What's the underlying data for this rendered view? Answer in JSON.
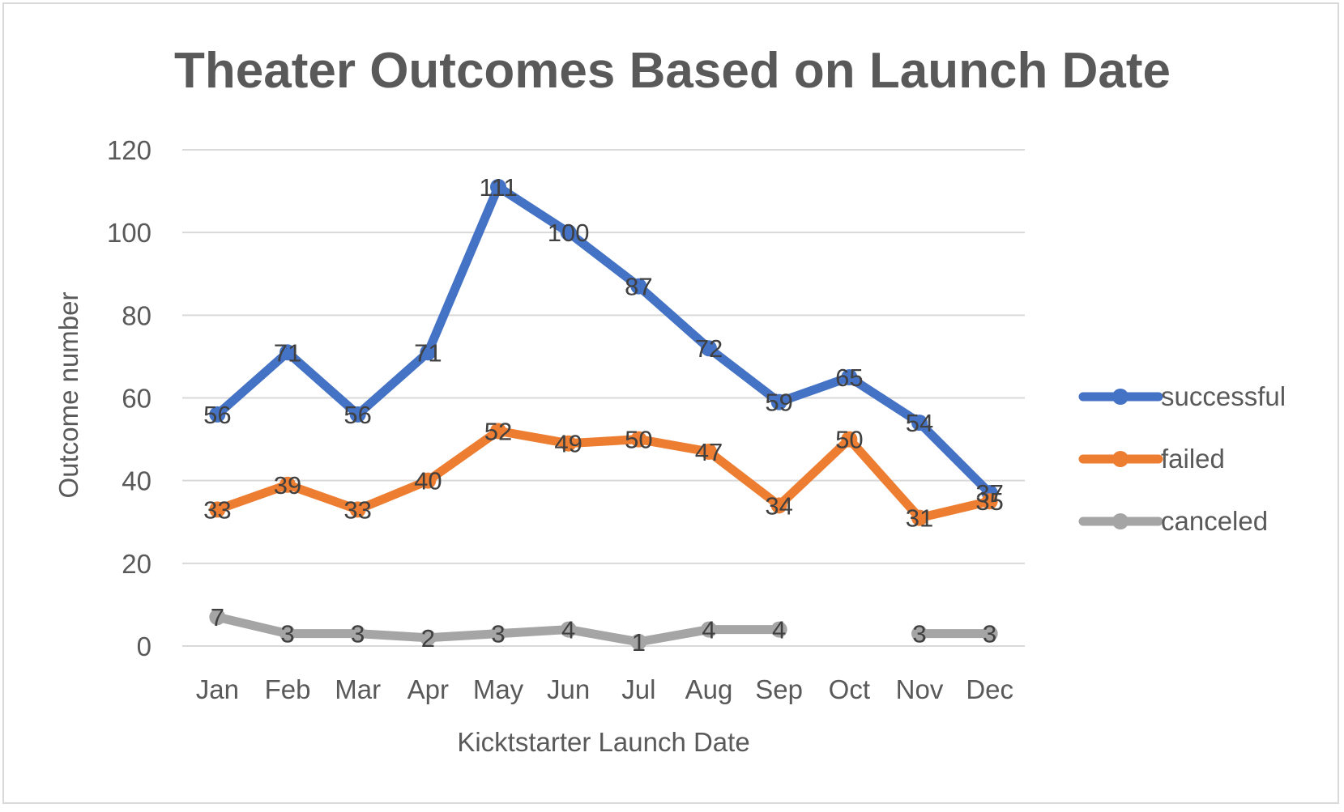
{
  "chart_data": {
    "type": "line",
    "title": "Theater Outcomes Based on Launch Date",
    "xlabel": "Kicktstarter Launch Date",
    "ylabel": "Outcome number",
    "ylim": [
      0,
      120
    ],
    "yticks": [
      0,
      20,
      40,
      60,
      80,
      100,
      120
    ],
    "categories": [
      "Jan",
      "Feb",
      "Mar",
      "Apr",
      "May",
      "Jun",
      "Jul",
      "Aug",
      "Sep",
      "Oct",
      "Nov",
      "Dec"
    ],
    "grid": true,
    "legend_position": "right",
    "series": [
      {
        "name": "successful",
        "color": "#4472c4",
        "values": [
          56,
          71,
          56,
          71,
          111,
          100,
          87,
          72,
          59,
          65,
          54,
          37
        ]
      },
      {
        "name": "failed",
        "color": "#ed7d31",
        "values": [
          33,
          39,
          33,
          40,
          52,
          49,
          50,
          47,
          34,
          50,
          31,
          35
        ]
      },
      {
        "name": "canceled",
        "color": "#a5a5a5",
        "values": [
          7,
          3,
          3,
          2,
          3,
          4,
          1,
          4,
          4,
          null,
          3,
          3
        ]
      }
    ]
  }
}
